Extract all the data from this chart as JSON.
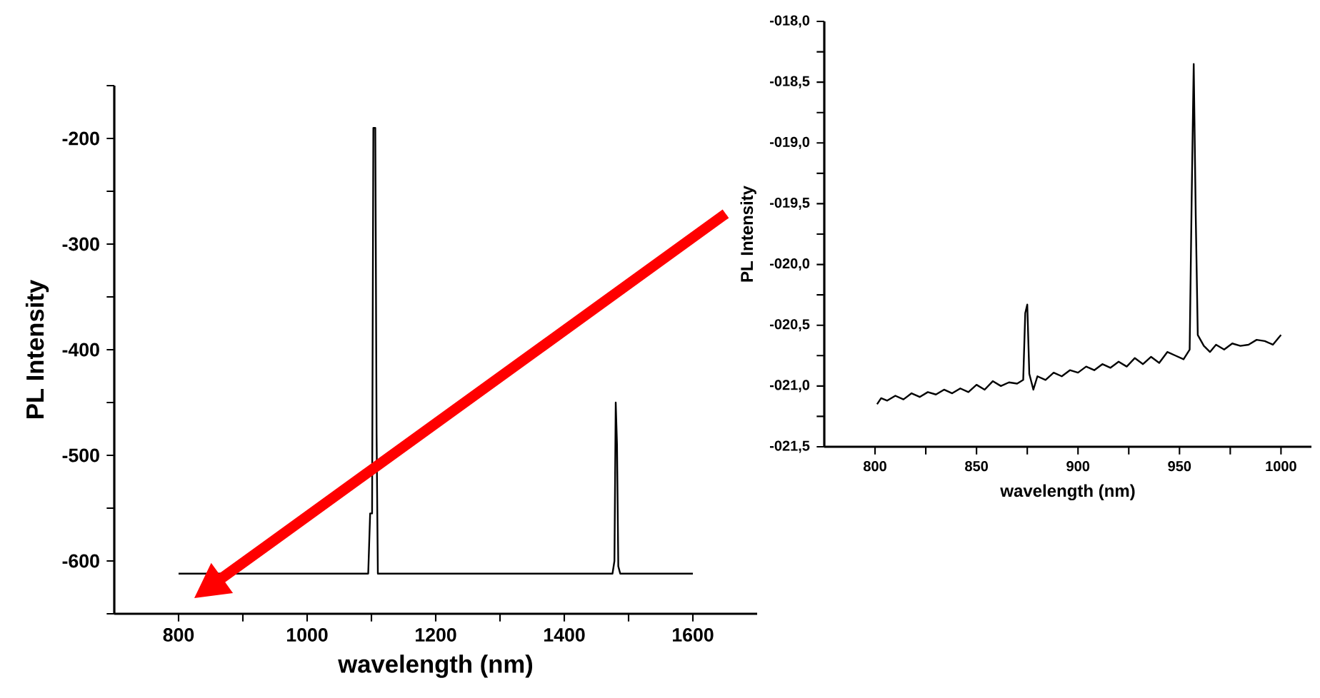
{
  "chart_data": [
    {
      "type": "line",
      "xlabel": "wavelength (nm)",
      "ylabel": "PL Intensity",
      "color": "#000000",
      "x": [
        800,
        1095,
        1098,
        1101,
        1103,
        1106,
        1108,
        1110,
        1475,
        1478,
        1480,
        1482,
        1484,
        1487,
        1600
      ],
      "values": [
        -612,
        -612,
        -555,
        -555,
        -190,
        -190,
        -480,
        -612,
        -612,
        -600,
        -450,
        -490,
        -605,
        -612,
        -612
      ],
      "xlim": [
        700,
        1700
      ],
      "ylim": [
        -650,
        -150
      ],
      "xticks": [
        800,
        {
          "value": 900,
          "label": null
        },
        1000,
        {
          "value": 1100,
          "label": null
        },
        1200,
        {
          "value": 1300,
          "label": null
        },
        1400,
        {
          "value": 1500,
          "label": null
        },
        1600
      ],
      "yticks": [
        {
          "value": -650,
          "label": null
        },
        -600,
        {
          "value": -550,
          "label": null
        },
        -500,
        {
          "value": -450,
          "label": null
        },
        -400,
        {
          "value": -350,
          "label": null
        },
        -300,
        {
          "value": -250,
          "label": null
        },
        -200,
        {
          "value": -150,
          "label": null
        }
      ]
    },
    {
      "type": "line",
      "xlabel": "wavelength (nm)",
      "ylabel": "PL Intensity",
      "color": "#000000",
      "x": [
        801,
        803,
        806,
        810,
        814,
        818,
        822,
        826,
        830,
        834,
        838,
        842,
        846,
        850,
        854,
        858,
        862,
        866,
        870,
        873,
        874,
        875,
        876,
        878,
        880,
        884,
        888,
        892,
        896,
        900,
        904,
        908,
        912,
        916,
        920,
        924,
        928,
        932,
        936,
        940,
        944,
        948,
        952,
        955,
        956,
        957,
        958,
        959,
        962,
        965,
        968,
        972,
        976,
        980,
        984,
        988,
        992,
        996,
        1000
      ],
      "values": [
        -21.15,
        -21.1,
        -21.12,
        -21.08,
        -21.11,
        -21.06,
        -21.09,
        -21.05,
        -21.07,
        -21.03,
        -21.06,
        -21.02,
        -21.05,
        -20.99,
        -21.03,
        -20.96,
        -21.0,
        -20.97,
        -20.98,
        -20.95,
        -20.4,
        -20.33,
        -20.9,
        -21.03,
        -20.92,
        -20.95,
        -20.89,
        -20.92,
        -20.87,
        -20.89,
        -20.84,
        -20.87,
        -20.82,
        -20.85,
        -20.8,
        -20.84,
        -20.77,
        -20.82,
        -20.76,
        -20.81,
        -20.72,
        -20.75,
        -20.78,
        -20.7,
        -19.45,
        -18.35,
        -19.6,
        -20.58,
        -20.67,
        -20.72,
        -20.66,
        -20.7,
        -20.65,
        -20.67,
        -20.66,
        -20.62,
        -20.63,
        -20.66,
        -20.58
      ],
      "xlim": [
        775,
        1015
      ],
      "ylim": [
        -21.5,
        -18.0
      ],
      "xticks": [
        800,
        {
          "value": 825,
          "label": null
        },
        850,
        {
          "value": 875,
          "label": null
        },
        900,
        {
          "value": 925,
          "label": null
        },
        950,
        {
          "value": 975,
          "label": null
        },
        1000
      ],
      "yticks": [
        {
          "value": -21.5,
          "label": "-021,5"
        },
        {
          "value": -21.25,
          "label": null
        },
        {
          "value": -21.0,
          "label": "-021,0"
        },
        {
          "value": -20.75,
          "label": null
        },
        {
          "value": -20.5,
          "label": "-020,5"
        },
        {
          "value": -20.25,
          "label": null
        },
        {
          "value": -20.0,
          "label": "-020,0"
        },
        {
          "value": -19.75,
          "label": null
        },
        {
          "value": -19.5,
          "label": "-019,5"
        },
        {
          "value": -19.25,
          "label": null
        },
        {
          "value": -19.0,
          "label": "-019,0"
        },
        {
          "value": -18.75,
          "label": null
        },
        {
          "value": -18.5,
          "label": "-018,5"
        },
        {
          "value": -18.25,
          "label": null
        },
        {
          "value": -18.0,
          "label": "-018,0"
        }
      ]
    }
  ]
}
